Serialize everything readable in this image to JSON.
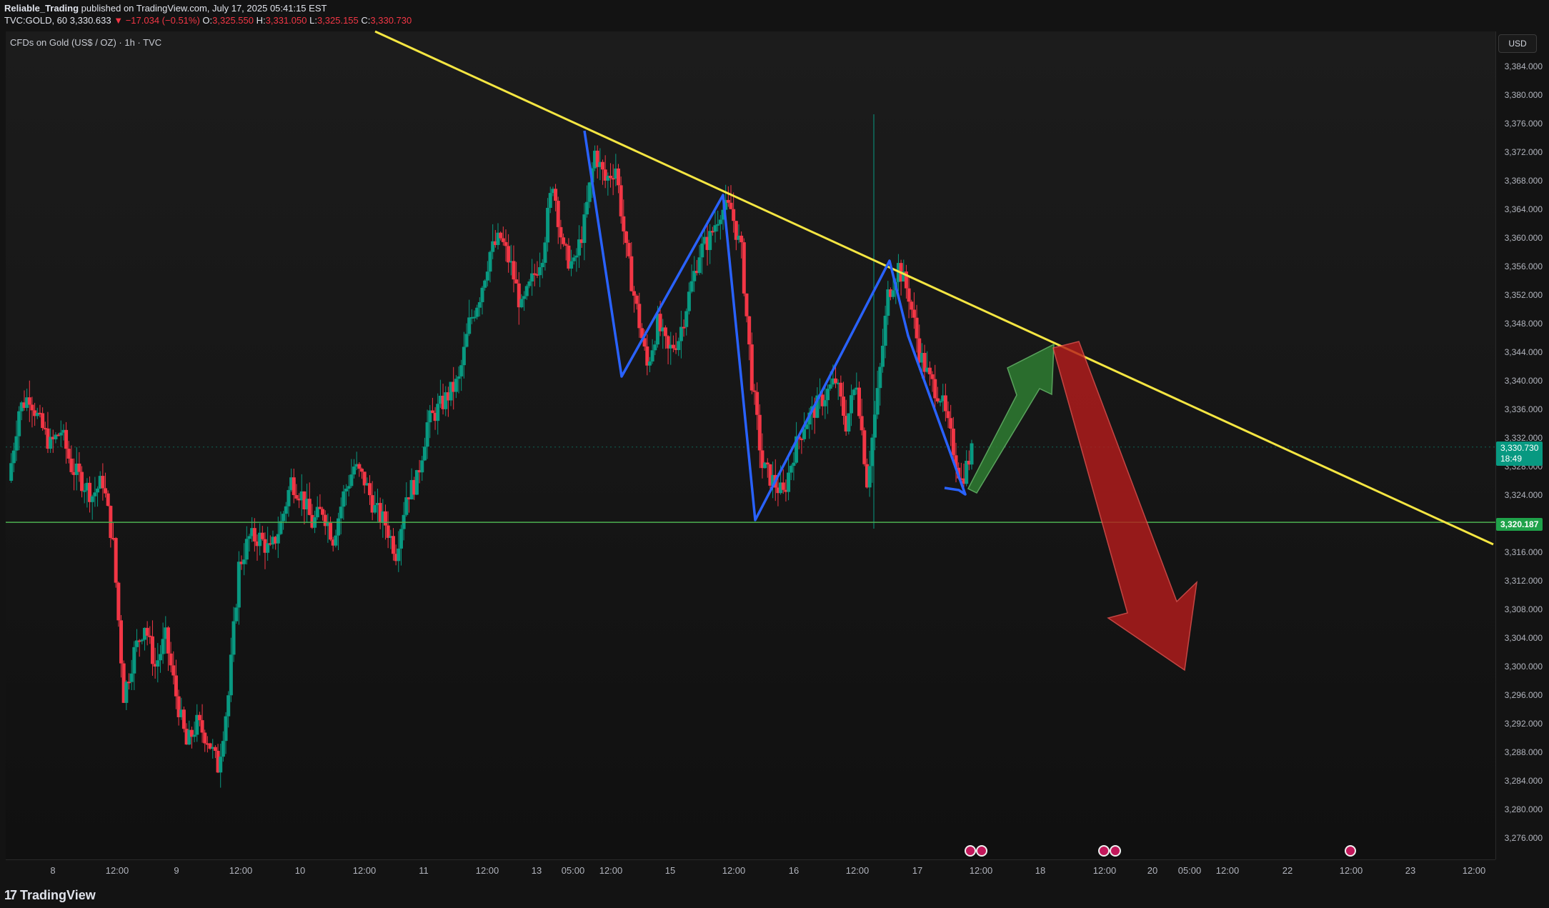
{
  "header": {
    "author": "Reliable_Trading",
    "published": "published on TradingView.com, July 17, 2025 05:41:15 EST",
    "symbol": "TVC:GOLD, 60",
    "last": "3,330.633",
    "change": "▼ −17.034 (−0.51%)",
    "o_label": "O:",
    "o_value": "3,325.550",
    "h_label": "H:",
    "h_value": "3,331.050",
    "l_label": "L:",
    "l_value": "3,325.155",
    "c_label": "C:",
    "c_value": "3,330.730"
  },
  "legend": {
    "title": "CFDs on Gold (US$ / OZ) · 1h · TVC"
  },
  "currency_button": "USD",
  "price_axis": {
    "ticks": [
      "3,384.000",
      "3,380.000",
      "3,376.000",
      "3,372.000",
      "3,368.000",
      "3,364.000",
      "3,360.000",
      "3,356.000",
      "3,352.000",
      "3,348.000",
      "3,344.000",
      "3,340.000",
      "3,336.000",
      "3,332.000",
      "3,328.000",
      "3,324.000",
      "3,320.000",
      "3,316.000",
      "3,312.000",
      "3,308.000",
      "3,304.000",
      "3,300.000",
      "3,296.000",
      "3,292.000",
      "3,288.000",
      "3,284.000",
      "3,280.000",
      "3,276.000"
    ],
    "current_price": "3,330.730",
    "countdown": "18:49",
    "level_price": "3,320.187"
  },
  "time_axis": {
    "ticks": [
      "8",
      "12:00",
      "9",
      "12:00",
      "10",
      "12:00",
      "11",
      "12:00",
      "13",
      "05:00",
      "12:00",
      "15",
      "12:00",
      "16",
      "12:00",
      "17",
      "12:00",
      "18",
      "12:00",
      "20",
      "05:00",
      "12:00",
      "22",
      "12:00",
      "23",
      "12:00"
    ]
  },
  "footer": {
    "brand": "TradingView",
    "logo": "17"
  },
  "colors": {
    "up": "#089981",
    "down": "#f23645",
    "trendline": "#f5e642",
    "pattern": "#2962ff",
    "support": "#4caf50",
    "arrow_up": "#2e7d32",
    "arrow_down": "#b71c1c"
  },
  "chart_data": {
    "type": "candlestick",
    "title": "CFDs on Gold (US$ / OZ) · 1h · TVC",
    "ylim": [
      3273,
      3388
    ],
    "close_path": [
      3326,
      3336,
      3338,
      3334,
      3331,
      3333,
      3328,
      3326,
      3324,
      3326,
      3317,
      3296,
      3302,
      3306,
      3300,
      3304,
      3296,
      3289,
      3292,
      3290,
      3286,
      3296,
      3314,
      3318,
      3318,
      3316,
      3320,
      3326,
      3324,
      3320,
      3322,
      3318,
      3324,
      3328,
      3326,
      3322,
      3320,
      3316,
      3324,
      3326,
      3334,
      3336,
      3338,
      3340,
      3348,
      3352,
      3358,
      3360,
      3356,
      3350,
      3354,
      3358,
      3368,
      3358,
      3356,
      3362,
      3372,
      3368,
      3370,
      3358,
      3350,
      3342,
      3348,
      3344,
      3346,
      3352,
      3358,
      3360,
      3364,
      3364,
      3358,
      3340,
      3328,
      3326,
      3324,
      3330,
      3334,
      3336,
      3338,
      3340,
      3334,
      3340,
      3326,
      3338,
      3352,
      3356,
      3352,
      3344,
      3340,
      3338,
      3332,
      3326,
      3330
    ],
    "support_level": 3320.187,
    "current_price": 3330.73
  }
}
